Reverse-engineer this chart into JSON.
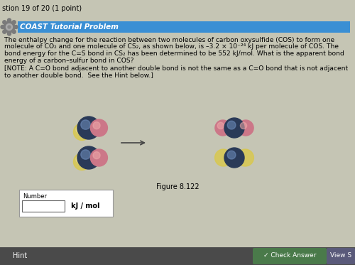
{
  "title_bar_text": "COAST Tutorial Problem",
  "title_bar_color": "#3a8fd4",
  "question_header": "stion 19 of 20 (1 point)",
  "body_text_line1": "The enthalpy change for the reaction between two molecules of carbon oxysulfide (COS) to form one",
  "body_text_line2": "molecule of CO₂ and one molecule of CS₂, as shown below, is –3.2 × 10⁻²⁴ kJ per molecule of COS. The",
  "body_text_line3": "bond energy for the C=S bond in CS₂ has been determined to be 552 kJ/mol. What is the apparent bond",
  "body_text_line4": "energy of a carbon–sulfur bond in COS?",
  "note_line1": "[NOTE: A C=O bond adjacent to another double bond is not the same as a C=O bond that is not adjacent",
  "note_line2": "to another double bond.  See the Hint below.]",
  "figure_label": "Figure 8.122",
  "number_label": "Number",
  "unit_label": "kJ / mol",
  "bg_color": "#c5c5b4",
  "bottom_bar_color": "#4a4a4a",
  "hint_text": "Hint",
  "check_answer_text": "Check Answer",
  "view_text": "View S",
  "carbon_color": "#2a3a58",
  "carbon_highlight": "#7090c0",
  "oxygen_color": "#cc7788",
  "oxygen_highlight": "#eeaaaa",
  "sulfur_color": "#d8c850",
  "sulfur_highlight": "#eee090"
}
